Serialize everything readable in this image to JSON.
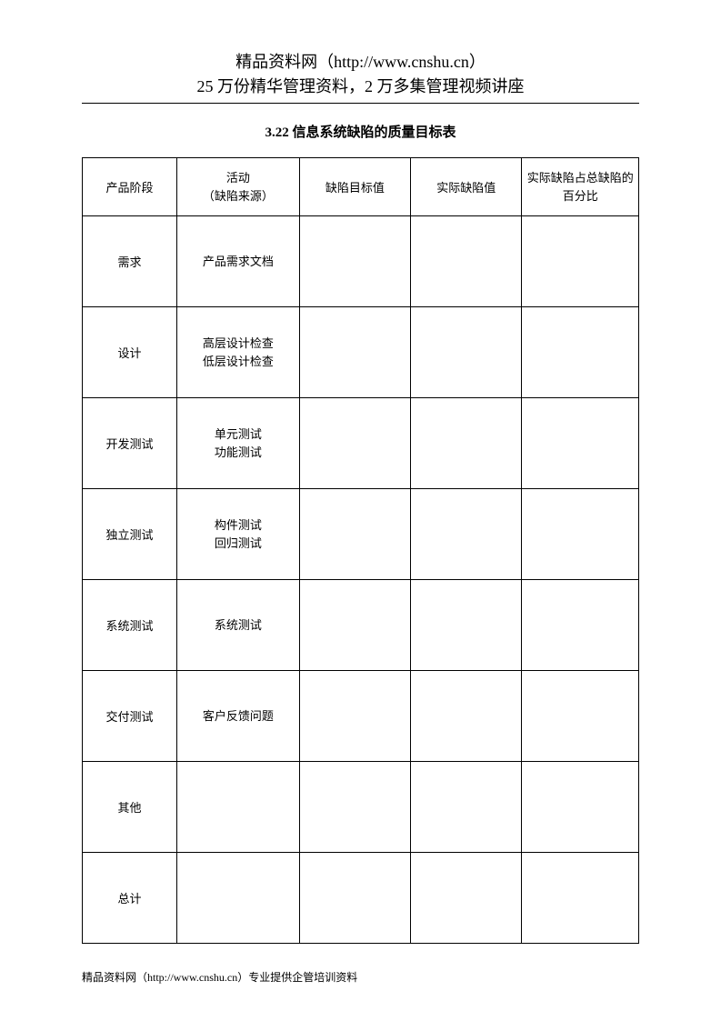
{
  "header": {
    "line1": "精品资料网（http://www.cnshu.cn）",
    "line2": "25 万份精华管理资料，2 万多集管理视频讲座"
  },
  "title": "3.22 信息系统缺陷的质量目标表",
  "table": {
    "columns": [
      "产品阶段",
      "活动\n（缺陷来源）",
      "缺陷目标值",
      "实际缺陷值",
      "实际缺陷占总缺陷的百分比"
    ],
    "rows": [
      {
        "phase": "需求",
        "activity": "产品需求文档",
        "target": "",
        "actual": "",
        "percent": ""
      },
      {
        "phase": "设计",
        "activity": "高层设计检查\n低层设计检查",
        "target": "",
        "actual": "",
        "percent": ""
      },
      {
        "phase": "开发测试",
        "activity": "单元测试\n功能测试",
        "target": "",
        "actual": "",
        "percent": ""
      },
      {
        "phase": "独立测试",
        "activity": "构件测试\n回归测试",
        "target": "",
        "actual": "",
        "percent": ""
      },
      {
        "phase": "系统测试",
        "activity": "系统测试",
        "target": "",
        "actual": "",
        "percent": ""
      },
      {
        "phase": "交付测试",
        "activity": "客户反馈问题",
        "target": "",
        "actual": "",
        "percent": ""
      },
      {
        "phase": "其他",
        "activity": "",
        "target": "",
        "actual": "",
        "percent": ""
      },
      {
        "phase": "总计",
        "activity": "",
        "target": "",
        "actual": "",
        "percent": ""
      }
    ]
  },
  "footer": "精品资料网（http://www.cnshu.cn）专业提供企管培训资料"
}
